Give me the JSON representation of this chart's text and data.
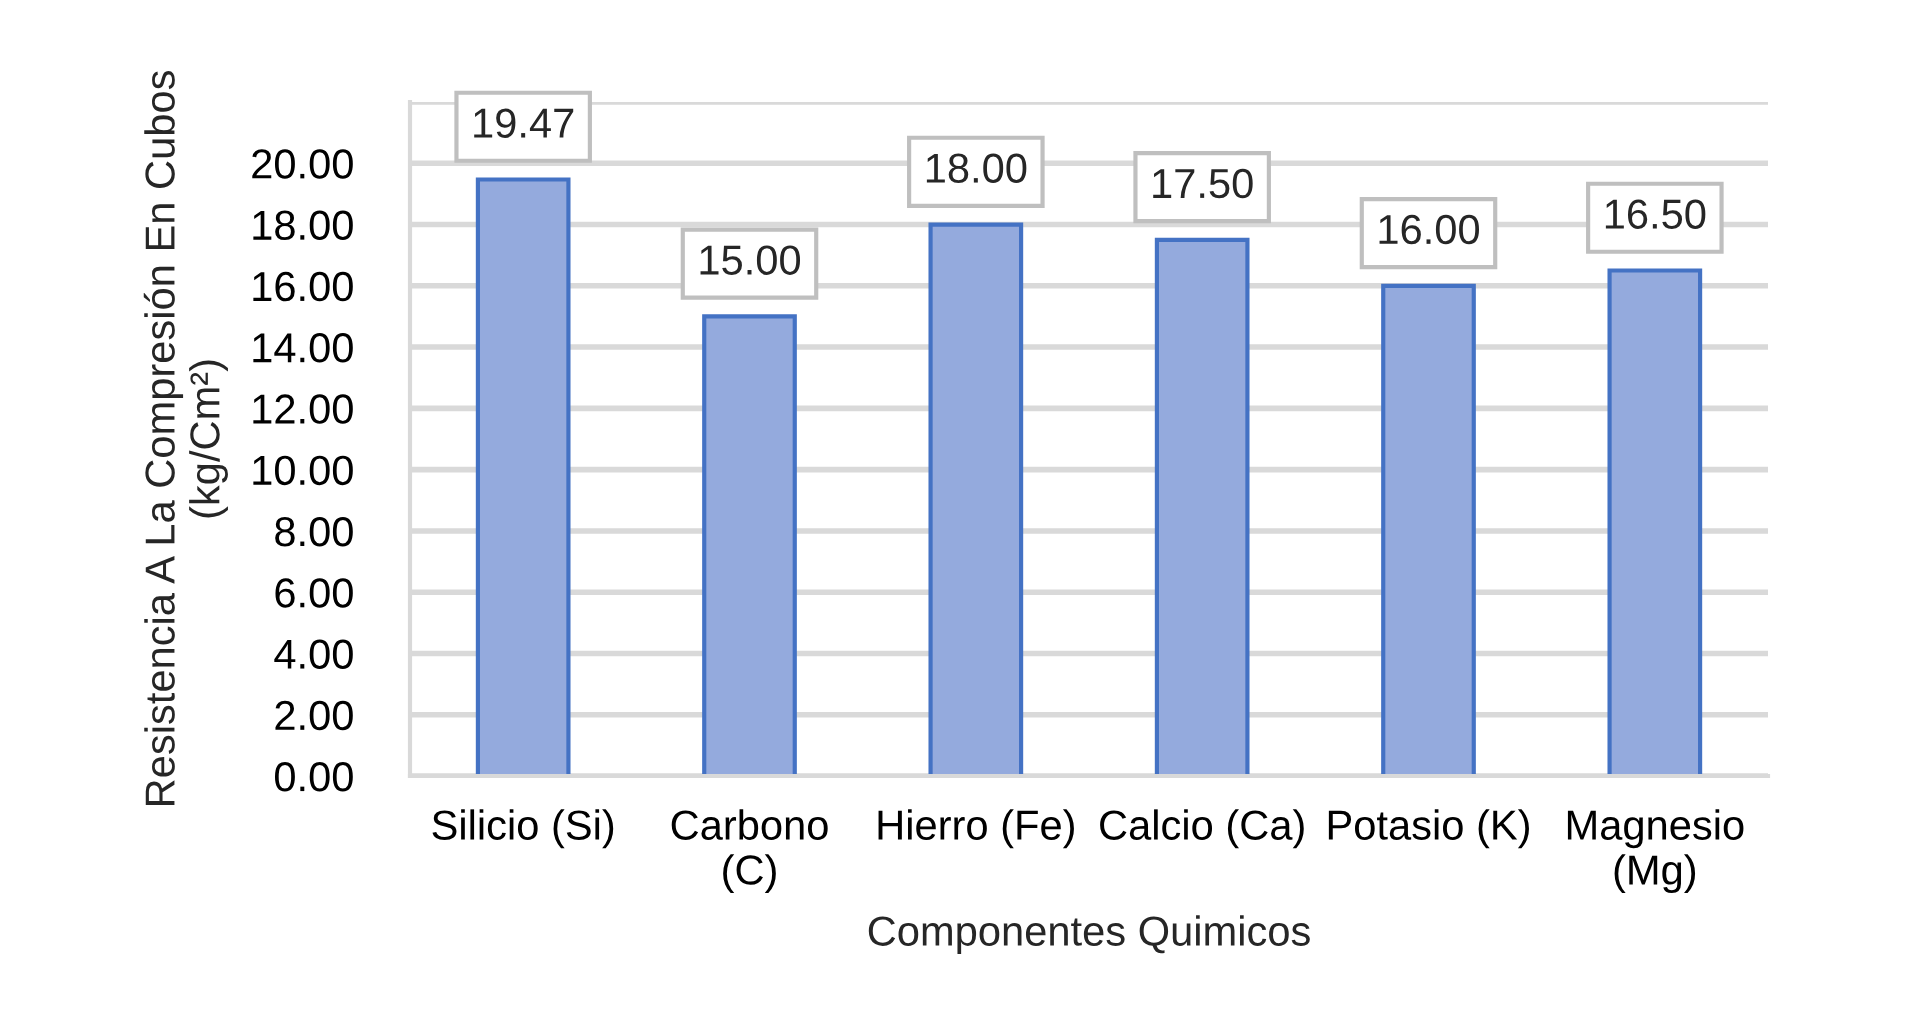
{
  "chart_data": {
    "type": "bar",
    "xlabel": "Componentes Quimicos",
    "ylabel": "Resistencia A La Compresión En Cubos\n(kg/Cm²)",
    "categories": [
      "Silicio (Si)",
      "Carbono\n(C)",
      "Hierro (Fe)",
      "Calcio (Ca)",
      "Potasio (K)",
      "Magnesio\n(Mg)"
    ],
    "values": [
      19.47,
      15.0,
      18.0,
      17.5,
      16.0,
      16.5
    ],
    "color": "#94aadd",
    "value_labels": [
      "19.47",
      "15.00",
      "18.00",
      "17.50",
      "16.00",
      "16.50"
    ],
    "ylim": [
      0,
      22
    ],
    "yticks": [
      {
        "value": 0,
        "label": "0.00"
      },
      {
        "value": 2,
        "label": "2.00"
      },
      {
        "value": 4,
        "label": "4.00"
      },
      {
        "value": 6,
        "label": "6.00"
      },
      {
        "value": 8,
        "label": "8.00"
      },
      {
        "value": 10,
        "label": "10.00"
      },
      {
        "value": 12,
        "label": "12.00"
      },
      {
        "value": 14,
        "label": "14.00"
      },
      {
        "value": 16,
        "label": "16.00"
      },
      {
        "value": 18,
        "label": "18.00"
      },
      {
        "value": 20,
        "label": "20.00"
      },
      {
        "value": 22,
        "label": null
      }
    ],
    "grid": "y"
  }
}
